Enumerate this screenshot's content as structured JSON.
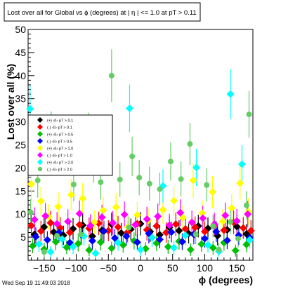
{
  "chart_data": {
    "type": "scatter",
    "title": "Lost over all for  Global vs ϕ (degrees) at |   η | <= 1.0 at pT > 0.11",
    "xlabel": "ϕ (degrees)",
    "ylabel": "Lost over all (%)",
    "xlim": [
      -175,
      175
    ],
    "ylim": [
      0,
      50
    ],
    "x_ticks": [
      -150,
      -100,
      -50,
      0,
      50,
      100,
      150
    ],
    "x_tick_labels": [
      "−150",
      "−100",
      "−50",
      "0",
      "50",
      "100",
      "150"
    ],
    "y_ticks": [
      5,
      10,
      15,
      20,
      25,
      30,
      35,
      40,
      45,
      50
    ],
    "y_tick_labels": [
      "5",
      "10",
      "15",
      "20",
      "25",
      "30",
      "35",
      "40",
      "45",
      "50"
    ],
    "grid": false,
    "legend_position": "left-middle",
    "timestamp": "Wed Sep 19 11:49:03 2018",
    "series": [
      {
        "name": "(+) ‹ß› pT > 0.1",
        "color": "#000000",
        "marker": "diamond",
        "points": [
          [
            -165,
            5.6
          ],
          [
            -150,
            7.2
          ],
          [
            -135,
            6.1
          ],
          [
            -120,
            5.4
          ],
          [
            -105,
            6.8
          ],
          [
            -90,
            7.6
          ],
          [
            -75,
            5.2
          ],
          [
            -60,
            6.5
          ],
          [
            -45,
            7.8
          ],
          [
            -30,
            5.9
          ],
          [
            -15,
            6.7
          ],
          [
            0,
            7.9
          ],
          [
            15,
            6.2
          ],
          [
            30,
            5.5
          ],
          [
            45,
            7.1
          ],
          [
            60,
            6.4
          ],
          [
            75,
            5.8
          ],
          [
            90,
            7.4
          ],
          [
            105,
            6.9
          ],
          [
            120,
            5.3
          ],
          [
            135,
            6.6
          ],
          [
            150,
            7.3
          ],
          [
            165,
            5.7
          ]
        ]
      },
      {
        "name": "(-) ‹ß› pT > 0.1",
        "color": "#ff0000",
        "marker": "diamond",
        "points": [
          [
            -170,
            7.5
          ],
          [
            -155,
            6.3
          ],
          [
            -140,
            8.1
          ],
          [
            -125,
            7.0
          ],
          [
            -110,
            6.0
          ],
          [
            -95,
            7.7
          ],
          [
            -80,
            6.9
          ],
          [
            -65,
            8.0
          ],
          [
            -50,
            6.4
          ],
          [
            -35,
            7.2
          ],
          [
            -20,
            6.1
          ],
          [
            -5,
            7.9
          ],
          [
            10,
            6.6
          ],
          [
            25,
            7.4
          ],
          [
            40,
            6.0
          ],
          [
            55,
            7.8
          ],
          [
            70,
            6.8
          ],
          [
            85,
            7.1
          ],
          [
            100,
            6.2
          ],
          [
            115,
            7.6
          ],
          [
            130,
            6.5
          ],
          [
            145,
            8.2
          ],
          [
            160,
            7.0
          ],
          [
            172,
            6.4
          ]
        ]
      },
      {
        "name": "(+) ‹ß› pT > 0.5",
        "color": "#00c000",
        "marker": "diamond",
        "points": [
          [
            -168,
            3.1
          ],
          [
            -150,
            2.4
          ],
          [
            -132,
            4.0
          ],
          [
            -115,
            2.8
          ],
          [
            -97,
            3.6
          ],
          [
            -80,
            2.2
          ],
          [
            -62,
            3.9
          ],
          [
            -45,
            2.6
          ],
          [
            -27,
            3.3
          ],
          [
            -10,
            4.2
          ],
          [
            8,
            2.5
          ],
          [
            25,
            3.7
          ],
          [
            43,
            2.9
          ],
          [
            60,
            4.1
          ],
          [
            78,
            2.3
          ],
          [
            95,
            3.5
          ],
          [
            113,
            2.7
          ],
          [
            130,
            3.8
          ],
          [
            148,
            2.1
          ],
          [
            165,
            3.4
          ]
        ]
      },
      {
        "name": "(-) ‹ß› pT > 0.5",
        "color": "#0000ff",
        "marker": "diamond",
        "points": [
          [
            -163,
            5.1
          ],
          [
            -145,
            4.4
          ],
          [
            -127,
            6.0
          ],
          [
            -110,
            3.8
          ],
          [
            -92,
            5.5
          ],
          [
            -75,
            4.2
          ],
          [
            -57,
            6.3
          ],
          [
            -40,
            4.8
          ],
          [
            -22,
            5.2
          ],
          [
            -5,
            3.9
          ],
          [
            13,
            5.8
          ],
          [
            30,
            4.5
          ],
          [
            48,
            6.1
          ],
          [
            65,
            4.0
          ],
          [
            83,
            5.6
          ],
          [
            100,
            4.7
          ],
          [
            118,
            6.2
          ],
          [
            135,
            4.3
          ],
          [
            153,
            5.4
          ],
          [
            170,
            4.9
          ]
        ]
      },
      {
        "name": "(+) ‹ß› pT > 1.0",
        "color": "#ffff00",
        "marker": "diamond",
        "points": [
          [
            -170,
            16.5
          ],
          [
            -155,
            12.8
          ],
          [
            -143,
            9.4
          ],
          [
            -128,
            11.6
          ],
          [
            -108,
            14.2
          ],
          [
            -90,
            13.4
          ],
          [
            -72,
            8.2
          ],
          [
            -58,
            10.8
          ],
          [
            -38,
            11.5
          ],
          [
            -20,
            7.2
          ],
          [
            -5,
            9.8
          ],
          [
            12,
            8.6
          ],
          [
            35,
            10.9
          ],
          [
            52,
            12.9
          ],
          [
            66,
            9.2
          ],
          [
            82,
            17.3
          ],
          [
            96,
            10.2
          ],
          [
            112,
            14.8
          ],
          [
            128,
            8.4
          ],
          [
            142,
            11.3
          ],
          [
            155,
            16.7
          ],
          [
            168,
            10.5
          ]
        ]
      },
      {
        "name": "(-) ‹ß› pT > 1.0",
        "color": "#ff00ff",
        "marker": "diamond",
        "points": [
          [
            -165,
            8.8
          ],
          [
            -148,
            9.6
          ],
          [
            -130,
            7.9
          ],
          [
            -113,
            8.4
          ],
          [
            -95,
            10.1
          ],
          [
            -78,
            7.5
          ],
          [
            -60,
            9.3
          ],
          [
            -43,
            8.1
          ],
          [
            -25,
            9.9
          ],
          [
            -8,
            7.7
          ],
          [
            10,
            8.9
          ],
          [
            27,
            9.5
          ],
          [
            45,
            7.6
          ],
          [
            62,
            10.3
          ],
          [
            80,
            8.2
          ],
          [
            97,
            9.1
          ],
          [
            115,
            7.8
          ],
          [
            132,
            9.7
          ],
          [
            150,
            8.5
          ],
          [
            167,
            10.0
          ]
        ]
      },
      {
        "name": "(+) ‹ß› pT > 2.0",
        "color": "#00ffff",
        "marker": "diamond",
        "points": [
          [
            -172,
            32.8
          ],
          [
            -158,
            3.5
          ],
          [
            -140,
            1.8
          ],
          [
            -122,
            4.6
          ],
          [
            -105,
            2.9
          ],
          [
            -88,
            5.2
          ],
          [
            -70,
            1.5
          ],
          [
            -52,
            23.4
          ],
          [
            -35,
            3.8
          ],
          [
            -17,
            32.9
          ],
          [
            0,
            2.3
          ],
          [
            18,
            4.9
          ],
          [
            35,
            16.1
          ],
          [
            52,
            2.7
          ],
          [
            70,
            5.4
          ],
          [
            87,
            20.1
          ],
          [
            105,
            3.3
          ],
          [
            122,
            1.9
          ],
          [
            140,
            36.0
          ],
          [
            158,
            20.8
          ],
          [
            170,
            4.4
          ]
        ]
      },
      {
        "name": "(-) ‹ß› pT > 2.0",
        "color": "#66cc66",
        "marker": "circle",
        "points": [
          [
            -171,
            10.4
          ],
          [
            -160,
            17.3
          ],
          [
            -150,
            1.8
          ],
          [
            -139,
            27.5
          ],
          [
            -130,
            5.3
          ],
          [
            -118,
            23.6
          ],
          [
            -104,
            16.4
          ],
          [
            -93,
            5.6
          ],
          [
            -81,
            27.3
          ],
          [
            -73,
            20.9
          ],
          [
            -62,
            16.9
          ],
          [
            -45,
            40.0
          ],
          [
            -32,
            17.5
          ],
          [
            -18,
            7.1
          ],
          [
            -13,
            22.5
          ],
          [
            -2,
            17.9
          ],
          [
            14,
            16.6
          ],
          [
            30,
            15.4
          ],
          [
            47,
            21.4
          ],
          [
            63,
            17.6
          ],
          [
            77,
            25.2
          ],
          [
            86,
            5.6
          ],
          [
            103,
            16.3
          ],
          [
            113,
            7.4
          ],
          [
            122,
            2.3
          ],
          [
            140,
            8.3
          ],
          [
            152,
            4.7
          ],
          [
            165,
            11.9
          ],
          [
            169,
            31.6
          ]
        ]
      }
    ]
  }
}
